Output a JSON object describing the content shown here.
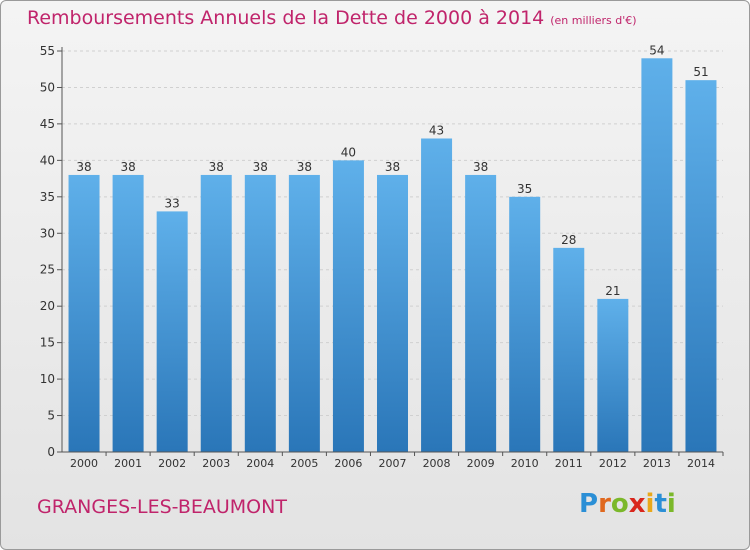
{
  "header": {
    "title": "Remboursements Annuels de la Dette de 2000 à 2014",
    "unit": "(en milliers d'€)"
  },
  "footer": {
    "commune": "GRANGES-LES-BEAUMONT",
    "logo_letters": [
      "P",
      "r",
      "o",
      "x",
      "i",
      "t",
      "i"
    ],
    "logo_colors": [
      "#2b8fd6",
      "#e0681e",
      "#7bb82a",
      "#d9261c",
      "#e9a81a",
      "#2b8fd6",
      "#7bb82a"
    ]
  },
  "colors": {
    "bar_top": "#5fb0ea",
    "bar_bottom": "#2a76b8",
    "accent": "#c0246b"
  },
  "chart_data": {
    "type": "bar",
    "title": "Remboursements Annuels de la Dette de 2000 à 2014",
    "ylabel": "en milliers d'€",
    "xlabel": "",
    "categories": [
      "2000",
      "2001",
      "2002",
      "2003",
      "2004",
      "2005",
      "2006",
      "2007",
      "2008",
      "2009",
      "2010",
      "2011",
      "2012",
      "2013",
      "2014"
    ],
    "values": [
      38,
      38,
      33,
      38,
      38,
      38,
      40,
      38,
      43,
      38,
      35,
      28,
      21,
      54,
      51
    ],
    "ylim": [
      0,
      55
    ],
    "yticks": [
      0,
      5,
      10,
      15,
      20,
      25,
      30,
      35,
      40,
      45,
      50,
      55
    ],
    "grid": true
  }
}
